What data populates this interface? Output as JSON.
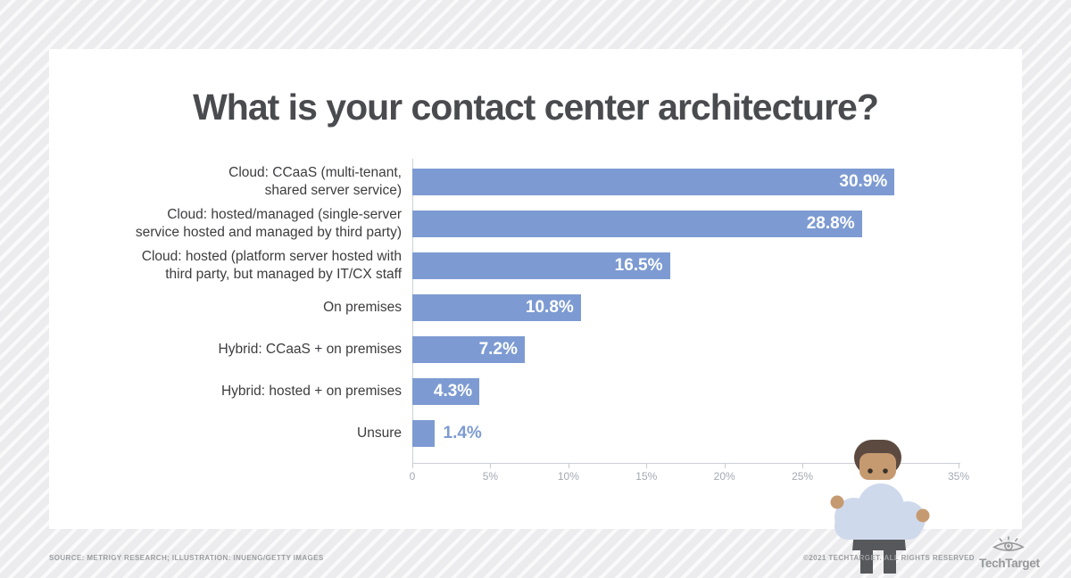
{
  "title": "What is your contact center architecture?",
  "chart_data": {
    "type": "bar",
    "orientation": "horizontal",
    "title": "What is your contact center architecture?",
    "categories": [
      "Cloud: CCaaS (multi-tenant, shared server service)",
      "Cloud: hosted/managed (single-server service hosted and managed by third party)",
      "Cloud: hosted (platform server hosted with third party, but managed by IT/CX staff",
      "On premises",
      "Hybrid: CCaaS + on premises",
      "Hybrid: hosted + on premises",
      "Unsure"
    ],
    "wrapped_labels": [
      "Cloud: CCaaS (multi-tenant,\nshared server service)",
      "Cloud: hosted/managed (single-server\nservice hosted and managed by third party)",
      "Cloud: hosted (platform server hosted with\nthird party, but managed by IT/CX staff",
      "On premises",
      "Hybrid: CCaaS + on premises",
      "Hybrid: hosted + on premises",
      "Unsure"
    ],
    "values": [
      30.9,
      28.8,
      16.5,
      10.8,
      7.2,
      4.3,
      1.4
    ],
    "value_labels": [
      "30.9%",
      "28.8%",
      "16.5%",
      "10.8%",
      "7.2%",
      "4.3%",
      "1.4%"
    ],
    "x_ticks": [
      "0",
      "5%",
      "10%",
      "15%",
      "20%",
      "25%",
      "30%",
      "35%"
    ],
    "xlim": [
      0,
      35
    ],
    "grid": false,
    "legend": false,
    "bar_color": "#7d9bd2",
    "outside_value_indices": [
      6
    ]
  },
  "illustration": {
    "name": "person-holding-cloud",
    "colors": {
      "hair": "#5c4a40",
      "skin": "#c69a70",
      "eyes": "#3a322c",
      "cloud": "#cfd9ec",
      "pants": "#57585c"
    }
  },
  "footer": {
    "source": "SOURCE: METRIGY RESEARCH; ILLUSTRATION: INUENG/GETTY IMAGES",
    "copyright": "©2021 TECHTARGET. ALL RIGHTS RESERVED",
    "brand": "TechTarget"
  },
  "colors": {
    "bar": "#7d9bd2",
    "value_text_inside": "#ffffff",
    "value_text_outside": "#7d9bd2",
    "axis_line": "#ccd1d8",
    "tick_label": "#a4a9b2",
    "category_label": "#3d3d3f",
    "title_text": "#4a4b4f",
    "card_bg": "#ffffff",
    "page_bg": "#ededef",
    "footer_text": "#9b9da0"
  }
}
